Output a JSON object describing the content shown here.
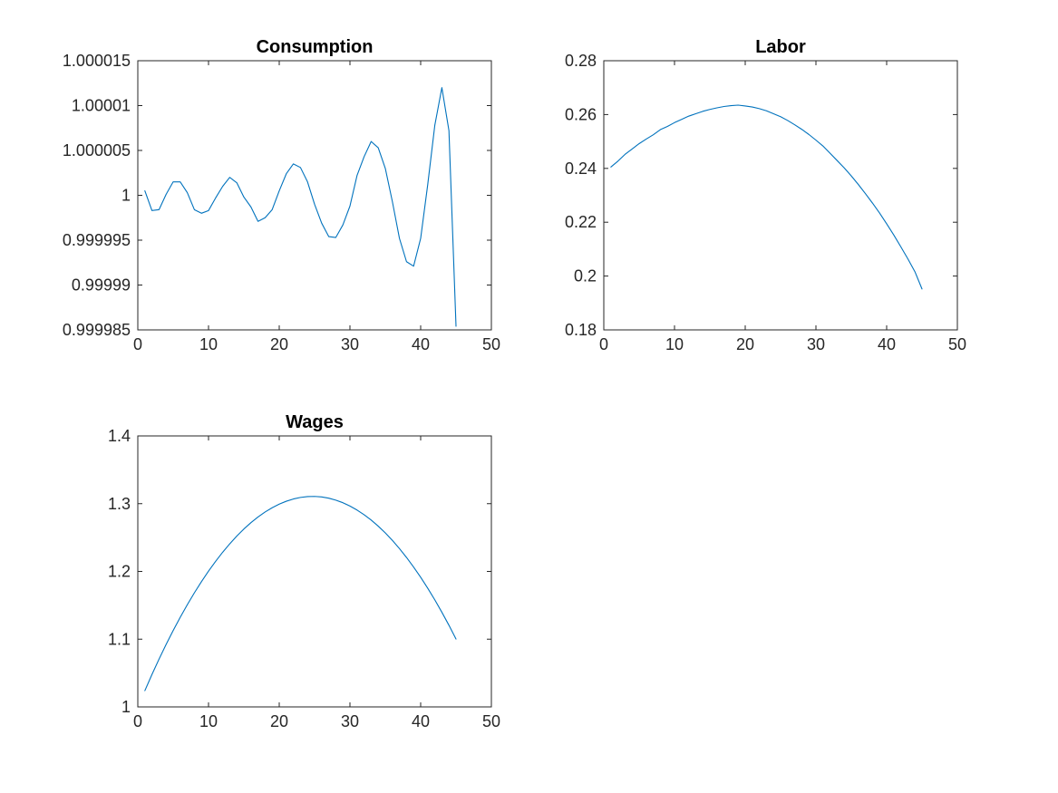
{
  "chart_data": [
    {
      "type": "line",
      "title": "Consumption",
      "xlabel": "",
      "ylabel": "",
      "xlim": [
        0,
        50
      ],
      "ylim": [
        0.999985,
        1.000015
      ],
      "xticks": [
        0,
        10,
        20,
        30,
        40,
        50
      ],
      "xtick_labels": [
        "0",
        "10",
        "20",
        "30",
        "40",
        "50"
      ],
      "yticks": [
        0.999985,
        0.99999,
        0.999995,
        1,
        1.000005,
        1.00001,
        1.000015
      ],
      "ytick_labels": [
        "0.999985",
        "0.99999",
        "0.999995",
        "1",
        "1.000005",
        "1.00001",
        "1.000015"
      ],
      "grid": false,
      "series": [
        {
          "color": "#0072BD",
          "x": [
            1,
            2,
            3,
            4,
            5,
            6,
            7,
            8,
            9,
            10,
            11,
            12,
            13,
            14,
            15,
            16,
            17,
            18,
            19,
            20,
            21,
            22,
            23,
            24,
            25,
            26,
            27,
            28,
            29,
            30,
            31,
            32,
            33,
            34,
            35,
            36,
            37,
            38,
            39,
            40,
            41,
            42,
            43,
            44,
            45
          ],
          "y": [
            1.0000005,
            0.9999983,
            0.9999984,
            1.0000001,
            1.0000015,
            1.0000015,
            1.0000003,
            0.9999984,
            0.999998,
            0.9999983,
            0.9999997,
            1.000001,
            1.000002,
            1.0000014,
            0.9999998,
            0.9999987,
            0.9999971,
            0.9999975,
            0.9999984,
            1.0000005,
            1.0000024,
            1.0000035,
            1.0000031,
            1.0000015,
            0.999999,
            0.9999969,
            0.9999954,
            0.9999953,
            0.9999967,
            0.9999988,
            1.0000022,
            1.0000043,
            1.000006,
            1.0000053,
            1.000003,
            0.9999993,
            0.9999952,
            0.9999926,
            0.9999921,
            0.9999952,
            1.0000012,
            1.0000078,
            1.000012,
            1.0000072,
            0.9999854
          ]
        }
      ]
    },
    {
      "type": "line",
      "title": "Labor",
      "xlabel": "",
      "ylabel": "",
      "xlim": [
        0,
        50
      ],
      "ylim": [
        0.18,
        0.28
      ],
      "xticks": [
        0,
        10,
        20,
        30,
        40,
        50
      ],
      "xtick_labels": [
        "0",
        "10",
        "20",
        "30",
        "40",
        "50"
      ],
      "yticks": [
        0.18,
        0.2,
        0.22,
        0.24,
        0.26,
        0.28
      ],
      "ytick_labels": [
        "0.18",
        "0.2",
        "0.22",
        "0.24",
        "0.26",
        "0.28"
      ],
      "grid": false,
      "series": [
        {
          "color": "#0072BD",
          "x": [
            1,
            2,
            3,
            4,
            5,
            6,
            7,
            8,
            9,
            10,
            11,
            12,
            13,
            14,
            15,
            16,
            17,
            18,
            19,
            20,
            21,
            22,
            23,
            24,
            25,
            26,
            27,
            28,
            29,
            30,
            31,
            32,
            33,
            34,
            35,
            36,
            37,
            38,
            39,
            40,
            41,
            42,
            43,
            44,
            45
          ],
          "y": [
            0.2405,
            0.2427,
            0.2452,
            0.2472,
            0.2492,
            0.2509,
            0.2525,
            0.2544,
            0.2556,
            0.257,
            0.2582,
            0.2594,
            0.2603,
            0.2612,
            0.2619,
            0.2625,
            0.263,
            0.2633,
            0.2635,
            0.2632,
            0.2628,
            0.2622,
            0.2614,
            0.2603,
            0.2592,
            0.2578,
            0.2562,
            0.2545,
            0.2526,
            0.2505,
            0.2483,
            0.2456,
            0.2429,
            0.2402,
            0.2372,
            0.234,
            0.2306,
            0.2271,
            0.2234,
            0.2194,
            0.2153,
            0.2109,
            0.2064,
            0.2016,
            0.1952
          ]
        }
      ]
    },
    {
      "type": "line",
      "title": "Wages",
      "xlabel": "",
      "ylabel": "",
      "xlim": [
        0,
        50
      ],
      "ylim": [
        1,
        1.4
      ],
      "xticks": [
        0,
        10,
        20,
        30,
        40,
        50
      ],
      "xtick_labels": [
        "0",
        "10",
        "20",
        "30",
        "40",
        "50"
      ],
      "yticks": [
        1,
        1.1,
        1.2,
        1.3,
        1.4
      ],
      "ytick_labels": [
        "1",
        "1.1",
        "1.2",
        "1.3",
        "1.4"
      ],
      "grid": false,
      "series": [
        {
          "color": "#0072BD",
          "x": [
            1,
            2,
            3,
            4,
            5,
            6,
            7,
            8,
            9,
            10,
            11,
            12,
            13,
            14,
            15,
            16,
            17,
            18,
            19,
            20,
            21,
            22,
            23,
            24,
            25,
            26,
            27,
            28,
            29,
            30,
            31,
            32,
            33,
            34,
            35,
            36,
            37,
            38,
            39,
            40,
            41,
            42,
            43,
            44,
            45
          ],
          "y": [
            1.024,
            1.0478,
            1.0705,
            1.0921,
            1.1127,
            1.1323,
            1.1508,
            1.1684,
            1.1849,
            1.2004,
            1.2148,
            1.2283,
            1.2407,
            1.2522,
            1.2626,
            1.272,
            1.2803,
            1.2877,
            1.294,
            1.2993,
            1.3036,
            1.3069,
            1.3092,
            1.3104,
            1.3107,
            1.3099,
            1.3081,
            1.3052,
            1.3014,
            1.2965,
            1.2906,
            1.2837,
            1.2758,
            1.2668,
            1.2568,
            1.2458,
            1.2337,
            1.2206,
            1.2065,
            1.1914,
            1.1752,
            1.158,
            1.1397,
            1.1205,
            1.1002
          ]
        }
      ]
    }
  ]
}
